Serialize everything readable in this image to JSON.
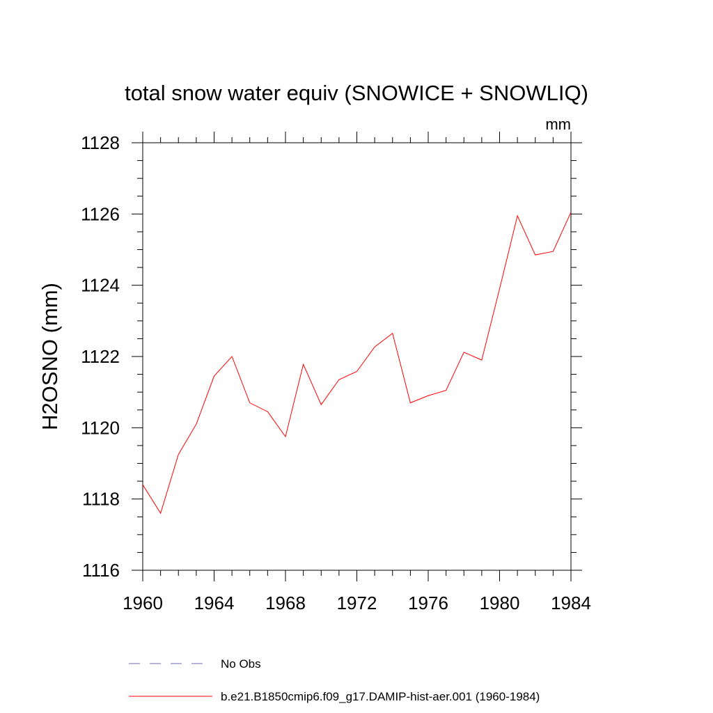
{
  "chart_data": {
    "type": "line",
    "title": "total snow water equiv (SNOWICE + SNOWLIQ)",
    "units": "mm",
    "xlabel": "",
    "ylabel": "H2OSNO  (mm)",
    "xlim": [
      1960,
      1984
    ],
    "ylim": [
      1116,
      1128
    ],
    "xticks": [
      "1960",
      "1964",
      "1968",
      "1972",
      "1976",
      "1980",
      "1984"
    ],
    "yticks": [
      "1116",
      "1118",
      "1120",
      "1122",
      "1124",
      "1126",
      "1128"
    ],
    "grid": false,
    "legend_position": "bottom",
    "series": [
      {
        "name": "b.e21.B1850cmip6.f09_g17.DAMIP-hist-aer.001 (1960-1984)",
        "color": "#ff0000",
        "style": "solid",
        "x": [
          1960,
          1961,
          1962,
          1963,
          1964,
          1965,
          1966,
          1967,
          1968,
          1969,
          1970,
          1971,
          1972,
          1973,
          1974,
          1975,
          1976,
          1977,
          1978,
          1979,
          1980,
          1981,
          1982,
          1983,
          1984
        ],
        "y": [
          1118.4,
          1117.6,
          1119.25,
          1120.1,
          1121.45,
          1122.0,
          1120.7,
          1120.45,
          1119.75,
          1121.78,
          1120.65,
          1121.35,
          1121.58,
          1122.27,
          1122.65,
          1120.7,
          1120.9,
          1121.05,
          1122.12,
          1121.9,
          1123.9,
          1125.95,
          1124.85,
          1124.95,
          1126.05
        ]
      }
    ],
    "legend": [
      {
        "label": "No Obs",
        "color": "#6b6bb8",
        "style": "dashed"
      },
      {
        "label": "b.e21.B1850cmip6.f09_g17.DAMIP-hist-aer.001 (1960-1984)",
        "color": "#ff0000",
        "style": "solid"
      }
    ]
  }
}
